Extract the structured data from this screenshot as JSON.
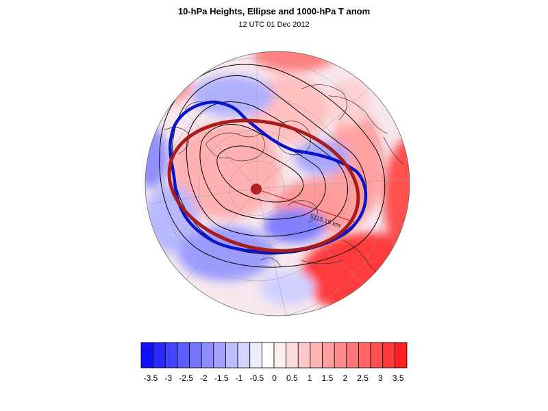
{
  "figure": {
    "title": "10-hPa Heights, Ellipse and 1000-hPa T anom",
    "subtitle": "12 UTC 01 Dec 2012",
    "distance_label": "5115.19 km"
  },
  "colorbar": {
    "colors": [
      "#1010ff",
      "#2a2aff",
      "#4444ff",
      "#5c5cff",
      "#7474ff",
      "#8c8cff",
      "#a4a4ff",
      "#bcbcff",
      "#d4d4ff",
      "#ececff",
      "#ffffff",
      "#ffeeee",
      "#ffdcdc",
      "#ffc8c8",
      "#ffb4b4",
      "#ffa0a0",
      "#ff8c8c",
      "#ff7878",
      "#ff6464",
      "#ff5050",
      "#ff3a3a",
      "#ff2020"
    ],
    "tick_labels": [
      "-3.5",
      "-3",
      "-2.5",
      "-2",
      "-1.5",
      "-1",
      "-0.5",
      "0",
      "0.5",
      "1",
      "1.5",
      "2",
      "2.5",
      "3",
      "3.5"
    ]
  },
  "legend_colors": {
    "vortex_contour": "#0a14c8",
    "ellipse": "#a81c1c",
    "ellipse_center": "#b22222",
    "height_contours": "#000000"
  }
}
